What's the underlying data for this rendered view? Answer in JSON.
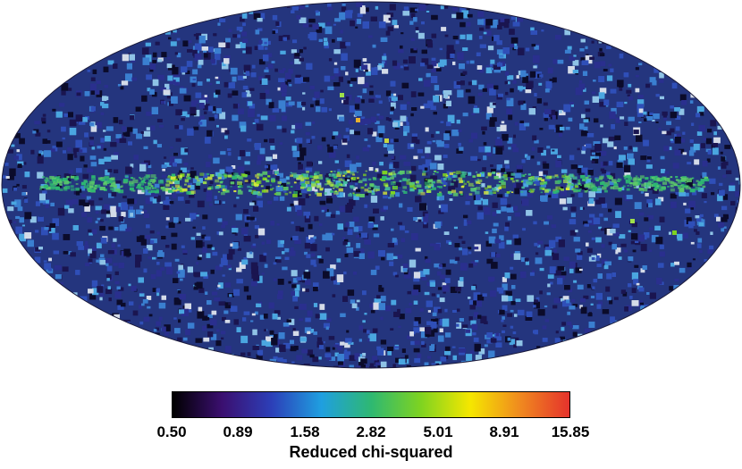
{
  "map": {
    "projection": "mollweide",
    "features": [
      "galactic-plane-band",
      "speckled-noise"
    ]
  },
  "colorbar": {
    "ticks": [
      "0.50",
      "0.89",
      "1.58",
      "2.82",
      "5.01",
      "8.91",
      "15.85"
    ],
    "label": "Reduced chi-squared",
    "colors": [
      "#000000",
      "#3b0f70",
      "#2c3fb8",
      "#1f9fe0",
      "#2eb872",
      "#7ed321",
      "#f5e700",
      "#f08a1f",
      "#e5322c"
    ]
  }
}
